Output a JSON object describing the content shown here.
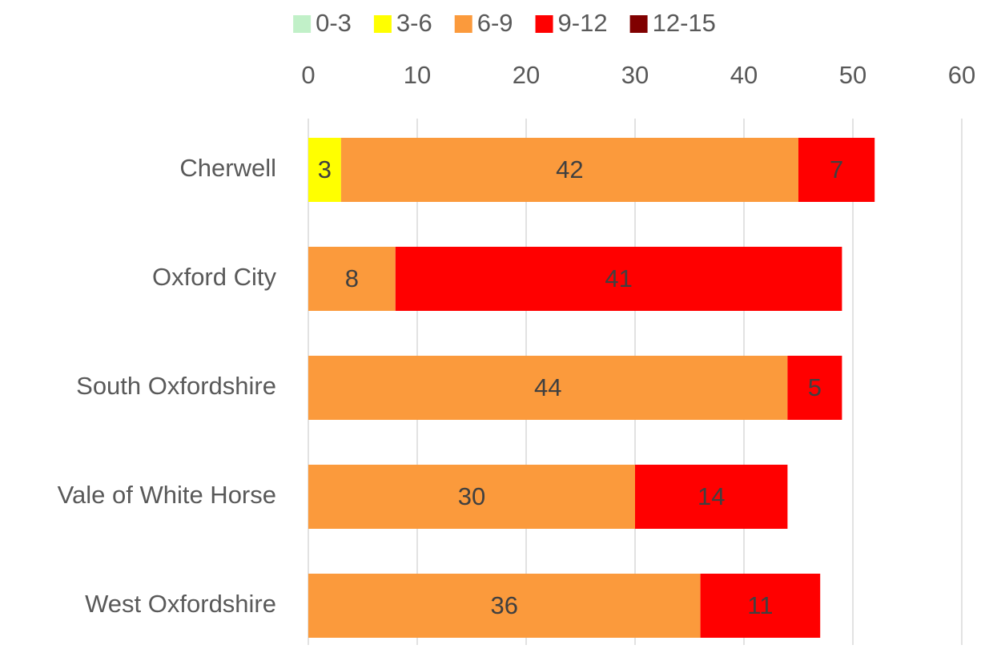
{
  "chart_data": {
    "type": "stacked-bar-horizontal",
    "categories": [
      "Cherwell",
      "Oxford City",
      "South Oxfordshire",
      "Vale of White Horse",
      "West Oxfordshire"
    ],
    "series": [
      {
        "name": "0-3",
        "color": "#c1f0c8",
        "values": [
          null,
          null,
          null,
          null,
          null
        ]
      },
      {
        "name": "3-6",
        "color": "#ffff00",
        "values": [
          3,
          null,
          null,
          null,
          null
        ]
      },
      {
        "name": "6-9",
        "color": "#fb9a3c",
        "values": [
          42,
          8,
          44,
          30,
          36
        ]
      },
      {
        "name": "9-12",
        "color": "#ff0000",
        "values": [
          7,
          41,
          5,
          14,
          11
        ]
      },
      {
        "name": "12-15",
        "color": "#800000",
        "values": [
          null,
          null,
          null,
          null,
          null
        ]
      }
    ],
    "xlim": [
      0,
      60
    ],
    "xticks": [
      0,
      10,
      20,
      30,
      40,
      50,
      60
    ],
    "grid": true,
    "legend": "top"
  }
}
